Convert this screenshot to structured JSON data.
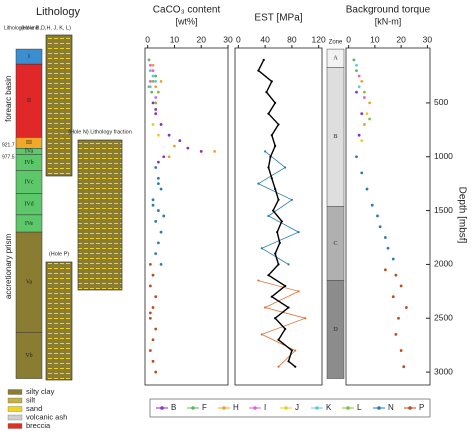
{
  "chart_data": [
    {
      "type": "strip",
      "title": "Lithology",
      "unit_header": "Lithological unit",
      "units": [
        {
          "label": "I",
          "top": 0,
          "bottom": 140,
          "color": "#3b8fd0"
        },
        {
          "label": "II",
          "top": 140,
          "bottom": 820,
          "color": "#e02828"
        },
        {
          "label": "III",
          "top": 820,
          "bottom": 921.7,
          "color": "#f0a828"
        },
        {
          "label": "IVa",
          "top": 921.7,
          "bottom": 977.5,
          "color": "#5cc86a"
        },
        {
          "label": "IVb",
          "top": 977.5,
          "bottom": 1130,
          "color": "#5cc86a"
        },
        {
          "label": "IVc",
          "top": 1130,
          "bottom": 1340,
          "color": "#5cc86a"
        },
        {
          "label": "IVd",
          "top": 1340,
          "bottom": 1540,
          "color": "#5cc86a"
        },
        {
          "label": "IVe",
          "top": 1540,
          "bottom": 1700,
          "color": "#5cc86a"
        },
        {
          "label": "Va",
          "top": 1700,
          "bottom": 2630,
          "color": "#8a7d32"
        },
        {
          "label": "Vb",
          "top": 2630,
          "bottom": 3060,
          "color": "#8a7d32"
        }
      ],
      "domains": [
        {
          "label": "forearc basin",
          "top": 0,
          "bottom": 921.7
        },
        {
          "label": "accretionary prism",
          "top": 977.5,
          "bottom": 3060
        }
      ],
      "boundaries": [
        921.7,
        977.5
      ],
      "fraction_labels": [
        "(Hole B,D,H, J, K, L)",
        "(Hole N) Lithology fraction",
        "(Hole P)"
      ],
      "legend": [
        {
          "label": "silty clay",
          "color": "#8a7d32"
        },
        {
          "label": "silt",
          "color": "#c2b04a"
        },
        {
          "label": "sand",
          "color": "#f2d41e"
        },
        {
          "label": "volcanic ash",
          "color": "#cfcfcf"
        },
        {
          "label": "breccia",
          "color": "#e03020"
        }
      ]
    },
    {
      "type": "scatter",
      "title": "CaCO₃ content",
      "subtitle": "[wt%]",
      "xlim": [
        -1,
        30
      ],
      "xticks": [
        0,
        10,
        20,
        30
      ],
      "series": [
        {
          "name": "B",
          "color": "#8b2fc9",
          "values": [
            2,
            3,
            5,
            8,
            12,
            20,
            6,
            4,
            15,
            3
          ],
          "depth": [
            500,
            600,
            700,
            800,
            850,
            950,
            1000,
            1050,
            920,
            560
          ]
        },
        {
          "name": "F",
          "color": "#5cb85c",
          "values": [
            0.5,
            1,
            2,
            1.5,
            3,
            0.5
          ],
          "depth": [
            100,
            200,
            300,
            400,
            250,
            350
          ]
        },
        {
          "name": "H",
          "color": "#f0a030",
          "values": [
            2,
            5,
            3,
            10,
            25,
            8
          ],
          "depth": [
            150,
            300,
            350,
            900,
            950,
            1000
          ]
        },
        {
          "name": "I",
          "color": "#e060e0",
          "values": [
            1,
            2,
            1,
            3
          ],
          "depth": [
            150,
            200,
            300,
            450
          ]
        },
        {
          "name": "J",
          "color": "#e8d020",
          "values": [
            3,
            2,
            4
          ],
          "depth": [
            500,
            700,
            800
          ]
        },
        {
          "name": "K",
          "color": "#60c8e0",
          "values": [
            1,
            2,
            3,
            1
          ],
          "depth": [
            200,
            250,
            300,
            350
          ]
        },
        {
          "name": "L",
          "color": "#80c040",
          "values": [
            2,
            4,
            3
          ],
          "depth": [
            300,
            400,
            500
          ]
        },
        {
          "name": "N",
          "color": "#2a7ab8",
          "values": [
            3,
            4,
            5,
            2,
            4,
            3,
            5,
            4,
            3,
            5,
            4,
            2,
            6
          ],
          "depth": [
            1100,
            1200,
            1300,
            1400,
            1500,
            1600,
            1700,
            1800,
            1900,
            2000,
            1250,
            1450,
            1550
          ]
        },
        {
          "name": "P",
          "color": "#c04a20",
          "values": [
            1,
            2,
            1,
            3,
            2,
            1,
            3,
            2,
            1,
            2,
            3,
            1
          ],
          "depth": [
            2000,
            2100,
            2200,
            2300,
            2400,
            2500,
            2600,
            2700,
            2800,
            2900,
            3000,
            2450
          ]
        }
      ]
    },
    {
      "type": "line",
      "title": "EST [MPa]",
      "xlim": [
        -5,
        125
      ],
      "xticks": [
        0,
        40,
        80,
        120
      ],
      "series": [
        {
          "color": "#2a7ab8",
          "values": [
            40,
            70,
            30,
            80,
            45,
            90,
            35,
            75
          ],
          "depth": [
            950,
            1100,
            1250,
            1400,
            1550,
            1700,
            1850,
            2000
          ]
        },
        {
          "color": "#e07030",
          "values": [
            30,
            90,
            40,
            100,
            35,
            85,
            60
          ],
          "depth": [
            2150,
            2250,
            2400,
            2500,
            2650,
            2800,
            2950
          ]
        },
        {
          "color": "#000000",
          "values": [
            38,
            30,
            50,
            42,
            55,
            45,
            60,
            50,
            55,
            48,
            45,
            50,
            55,
            60,
            52,
            65,
            58,
            62,
            55,
            60,
            45,
            70,
            50,
            75,
            55,
            70,
            60,
            80,
            75,
            85
          ],
          "depth": [
            100,
            200,
            300,
            400,
            500,
            600,
            700,
            800,
            900,
            1000,
            1100,
            1200,
            1300,
            1400,
            1500,
            1600,
            1700,
            1800,
            1900,
            2000,
            2100,
            2200,
            2300,
            2400,
            2500,
            2600,
            2700,
            2800,
            2900,
            2950
          ]
        }
      ]
    },
    {
      "type": "scatter",
      "title": "Background torque",
      "subtitle": "[kN-m]",
      "xlim": [
        -1,
        31
      ],
      "xticks": [
        0,
        10,
        20,
        30
      ],
      "zone_title": "Zone",
      "zones": [
        {
          "label": "A",
          "top": 0,
          "bottom": 170,
          "color": "#f2f2f2"
        },
        {
          "label": "B",
          "top": 170,
          "bottom": 1460,
          "color": "#dedede"
        },
        {
          "label": "C",
          "top": 1460,
          "bottom": 2150,
          "color": "#b0b0b0"
        },
        {
          "label": "D",
          "top": 2150,
          "bottom": 3060,
          "color": "#8c8c8c"
        }
      ],
      "series": [
        {
          "color": "#8b2fc9",
          "values": [
            3,
            5,
            4
          ],
          "depth": [
            400,
            600,
            800
          ]
        },
        {
          "color": "#5cb85c",
          "values": [
            2,
            3
          ],
          "depth": [
            100,
            200
          ]
        },
        {
          "color": "#f0a030",
          "values": [
            5,
            8,
            6
          ],
          "depth": [
            300,
            500,
            700
          ]
        },
        {
          "color": "#e060e0",
          "values": [
            4,
            6
          ],
          "depth": [
            250,
            450
          ]
        },
        {
          "color": "#e8d020",
          "values": [
            7,
            5
          ],
          "depth": [
            600,
            850
          ]
        },
        {
          "color": "#60c8e0",
          "values": [
            3,
            4
          ],
          "depth": [
            150,
            350
          ]
        },
        {
          "color": "#80c040",
          "values": [
            6,
            8
          ],
          "depth": [
            400,
            650
          ]
        },
        {
          "color": "#2a7ab8",
          "values": [
            3,
            5,
            7,
            9,
            11,
            12,
            14,
            15,
            17
          ],
          "depth": [
            1000,
            1150,
            1300,
            1450,
            1550,
            1650,
            1750,
            1850,
            1950
          ]
        },
        {
          "color": "#c04a20",
          "values": [
            14,
            18,
            20,
            17,
            22,
            19,
            18,
            20,
            21
          ],
          "depth": [
            2050,
            2100,
            2200,
            2300,
            2400,
            2500,
            2650,
            2800,
            2950
          ]
        }
      ]
    }
  ],
  "depth_axis": {
    "label": "Depth [mbsf]",
    "lim": [
      -10,
      3120
    ],
    "ticks": [
      500,
      1000,
      1500,
      2000,
      2500,
      3000
    ]
  }
}
